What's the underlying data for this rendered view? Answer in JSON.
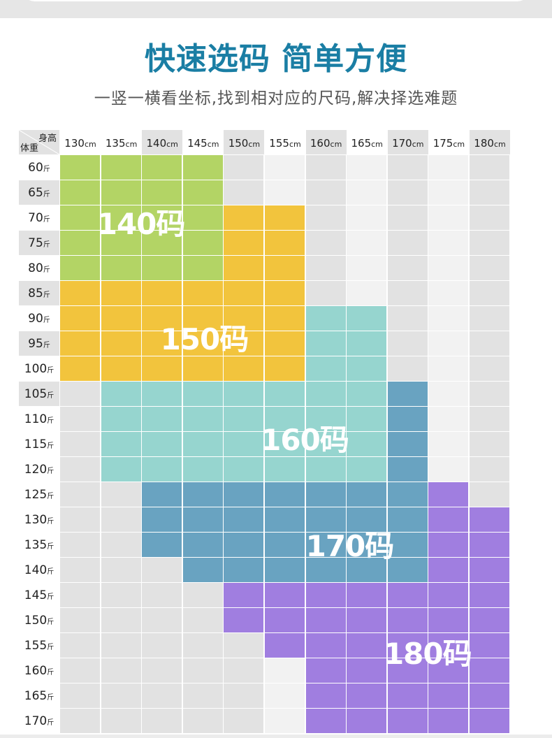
{
  "header": {
    "title": "快速选码 简单方便",
    "subtitle": "一竖一横看坐标,找到相对应的尺码,解决择选难题"
  },
  "table": {
    "corner_height_label": "身高",
    "corner_weight_label": "体重",
    "height_unit": "cm",
    "weight_unit": "斤",
    "heights": [
      "130",
      "135",
      "140",
      "145",
      "150",
      "155",
      "160",
      "165",
      "170",
      "175",
      "180"
    ],
    "weights": [
      "60",
      "65",
      "70",
      "75",
      "80",
      "85",
      "90",
      "95",
      "100",
      "105",
      "110",
      "115",
      "120",
      "125",
      "130",
      "135",
      "140",
      "145",
      "150",
      "155",
      "160",
      "165",
      "170"
    ],
    "sizes": [
      {
        "label": "140码",
        "color": "#b3d465"
      },
      {
        "label": "150码",
        "color": "#f2c43d"
      },
      {
        "label": "160码",
        "color": "#96d5cf"
      },
      {
        "label": "170码",
        "color": "#69a3c1"
      },
      {
        "label": "180码",
        "color": "#a07ee0"
      }
    ],
    "grid": [
      "0000-------",
      "0000-------",
      "000011-----",
      "000011-----",
      "000011-----",
      "111111-----",
      "11111122---",
      "11111122---",
      "11111122---",
      "-22222223--",
      "-22222223--",
      "-22222223--",
      "-22222223--",
      "--33333334-",
      "--333333344",
      "--333333344",
      "---33333344",
      "----4444444",
      "----4444444",
      "-----444444",
      "------44444",
      "------44444",
      "------44444"
    ],
    "empty_colors": {
      "dark": "#e2e2e2",
      "light": "#f2f2f2"
    }
  }
}
